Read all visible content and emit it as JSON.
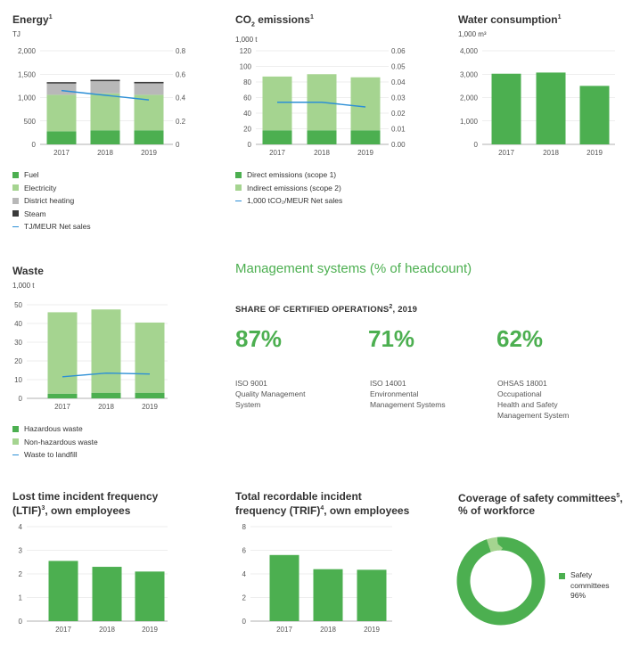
{
  "colors": {
    "fuel": "#4caf50",
    "electricity": "#a5d490",
    "district_heating": "#b8b8b8",
    "steam": "#3a3a3a",
    "line": "#2c8fd6",
    "bar": "#4caf50",
    "grid": "#dddddd"
  },
  "energy": {
    "title": "Energy",
    "sup": "1",
    "unit": "TJ",
    "legend": [
      "Fuel",
      "Electricity",
      "District heating",
      "Steam",
      "TJ/MEUR Net sales"
    ]
  },
  "co2": {
    "title_a": "CO",
    "title_sub": "2",
    "title_b": " emissions",
    "sup": "1",
    "unit": "1,000 t",
    "legend": [
      "Direct emissions (scope 1)",
      "Indirect emissions (scope 2)",
      "1,000 tCO₂/MEUR Net sales"
    ]
  },
  "water": {
    "title": "Water consumption",
    "sup": "1",
    "unit": "1,000 m³"
  },
  "waste": {
    "title": "Waste",
    "unit": "1,000 t",
    "legend": [
      "Hazardous waste",
      "Non-hazardous waste",
      "Waste to landfill"
    ]
  },
  "management": {
    "title": "Management systems (% of headcount)",
    "subtitle": "SHARE OF CERTIFIED OPERATIONS",
    "subtitle_sup": "2",
    "subtitle_year": ", 2019",
    "items": [
      {
        "pct": "87%",
        "desc": "ISO 9001\nQuality Management\nSystem"
      },
      {
        "pct": "71%",
        "desc": "ISO 14001\nEnvironmental\nManagement Systems"
      },
      {
        "pct": "62%",
        "desc": "OHSAS 18001\nOccupational\nHealth and Safety\nManagement System"
      }
    ]
  },
  "ltif": {
    "title_l1": "Lost time incident frequency",
    "title_l2a": "(LTIF)",
    "sup": "3",
    "title_l2b": ", own employees"
  },
  "trif": {
    "title_l1": "Total recordable incident",
    "title_l2a": "frequency (TRIF)",
    "sup": "4",
    "title_l2b": ", own employees"
  },
  "coverage": {
    "title_l1a": "Coverage of safety committees",
    "sup": "5",
    "title_l1b": ",",
    "title_l2": "% of workforce"
  },
  "chart_data": [
    {
      "id": "energy",
      "type": "bar",
      "stacked": true,
      "categories": [
        "2017",
        "2018",
        "2019"
      ],
      "series": [
        {
          "name": "Fuel",
          "values": [
            280,
            300,
            300
          ]
        },
        {
          "name": "Electricity",
          "values": [
            780,
            790,
            760
          ]
        },
        {
          "name": "District heating",
          "values": [
            240,
            260,
            245
          ]
        },
        {
          "name": "Steam",
          "values": [
            30,
            30,
            30
          ]
        }
      ],
      "line": {
        "name": "TJ/MEUR Net sales",
        "values": [
          0.46,
          0.42,
          0.38
        ]
      },
      "ylim": [
        0,
        2000
      ],
      "yticks": [
        "0",
        "500",
        "1,000",
        "1,500",
        "2,000"
      ],
      "y2lim": [
        0,
        0.8
      ],
      "y2ticks": [
        "0",
        "0.2",
        "0.4",
        "0.6",
        "0.8"
      ]
    },
    {
      "id": "co2",
      "type": "bar",
      "stacked": true,
      "categories": [
        "2017",
        "2018",
        "2019"
      ],
      "series": [
        {
          "name": "Direct emissions (scope 1)",
          "values": [
            18,
            18,
            18
          ]
        },
        {
          "name": "Indirect emissions (scope 2)",
          "values": [
            69,
            72,
            68
          ]
        }
      ],
      "line": {
        "name": "1,000 tCO₂/MEUR Net sales",
        "values": [
          0.027,
          0.027,
          0.024
        ]
      },
      "ylim": [
        0,
        120
      ],
      "yticks": [
        "0",
        "20",
        "40",
        "60",
        "80",
        "100",
        "120"
      ],
      "y2lim": [
        0,
        0.06
      ],
      "y2ticks": [
        "0.00",
        "0.01",
        "0.02",
        "0.03",
        "0.04",
        "0.05",
        "0.06"
      ]
    },
    {
      "id": "water",
      "type": "bar",
      "categories": [
        "2017",
        "2018",
        "2019"
      ],
      "values": [
        3020,
        3070,
        2500
      ],
      "ylim": [
        0,
        4000
      ],
      "yticks": [
        "0",
        "1,000",
        "2,000",
        "3,000",
        "4,000"
      ]
    },
    {
      "id": "waste",
      "type": "bar",
      "stacked": true,
      "categories": [
        "2017",
        "2018",
        "2019"
      ],
      "series": [
        {
          "name": "Hazardous waste",
          "values": [
            2.5,
            3,
            3
          ]
        },
        {
          "name": "Non-hazardous waste",
          "values": [
            43.5,
            44.5,
            37.5
          ]
        }
      ],
      "line": {
        "name": "Waste to landfill",
        "values": [
          11.5,
          13.5,
          13
        ]
      },
      "ylim": [
        0,
        50
      ],
      "yticks": [
        "0",
        "10",
        "20",
        "30",
        "40",
        "50"
      ]
    },
    {
      "id": "ltif",
      "type": "bar",
      "categories": [
        "2017",
        "2018",
        "2019"
      ],
      "values": [
        2.55,
        2.3,
        2.1
      ],
      "ylim": [
        0,
        4
      ],
      "yticks": [
        "0",
        "1",
        "2",
        "3",
        "4"
      ]
    },
    {
      "id": "trif",
      "type": "bar",
      "categories": [
        "2017",
        "2018",
        "2019"
      ],
      "values": [
        5.6,
        4.4,
        4.35
      ],
      "ylim": [
        0,
        8
      ],
      "yticks": [
        "0",
        "2",
        "4",
        "6",
        "8"
      ]
    },
    {
      "id": "coverage",
      "type": "pie",
      "donut": true,
      "labels": [
        "Safety committees",
        "Other"
      ],
      "values": [
        96,
        4
      ],
      "legend": [
        "Safety",
        "committees",
        "96%"
      ]
    }
  ]
}
